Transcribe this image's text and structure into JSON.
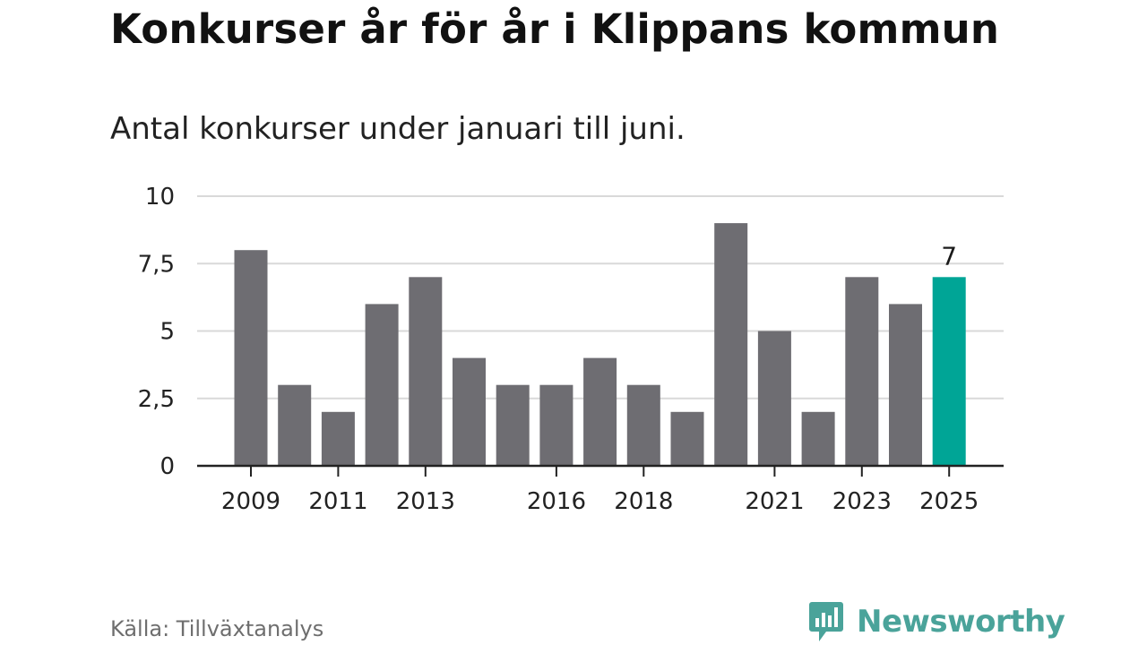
{
  "title": "Konkurser år för år i Klippans kommun",
  "subtitle": "Antal konkurser under januari till juni.",
  "source": "Källa: Tillväxtanalys",
  "brand": {
    "name": "Newsworthy",
    "icon": "newsworthy-logo-icon",
    "color": "#4aa39a"
  },
  "chart_data": {
    "type": "bar",
    "x": [
      2009,
      2010,
      2011,
      2012,
      2013,
      2014,
      2015,
      2016,
      2017,
      2018,
      2019,
      2020,
      2021,
      2022,
      2023,
      2024,
      2025
    ],
    "values": [
      8,
      3,
      2,
      6,
      7,
      4,
      3,
      3,
      4,
      3,
      2,
      9,
      5,
      2,
      7,
      6,
      7
    ],
    "x_tick_labels": [
      "2009",
      "2011",
      "2013",
      "2016",
      "2018",
      "2021",
      "2023",
      "2025"
    ],
    "x_ticks": [
      2009,
      2011,
      2013,
      2016,
      2018,
      2021,
      2023,
      2025
    ],
    "y_ticks": [
      0,
      2.5,
      5,
      7.5,
      10
    ],
    "y_tick_labels": [
      "0",
      "2,5",
      "5",
      "7,5",
      "10"
    ],
    "ylim": [
      0,
      10
    ],
    "highlight": {
      "x": 2025,
      "label": "7"
    },
    "colors": {
      "bar": "#6e6d72",
      "highlight": "#00a596",
      "grid": "#d9d9d9",
      "axis": "#222222"
    },
    "grid": true
  }
}
